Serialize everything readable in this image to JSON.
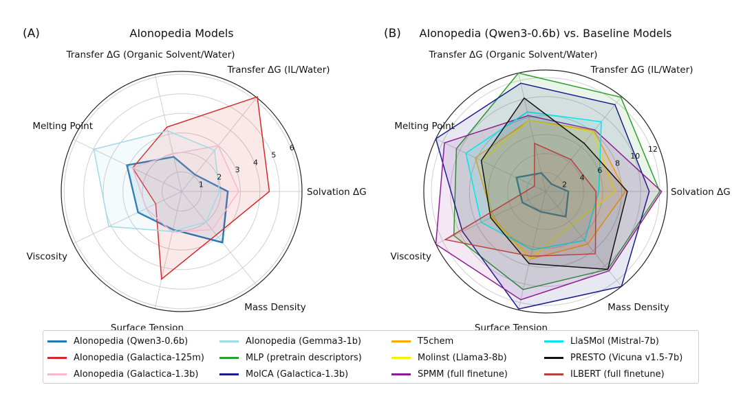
{
  "chart_data": [
    {
      "type": "radar",
      "panel_label": "(A)",
      "title": "AIonopedia Models",
      "axes": [
        "Solvation ΔG",
        "Transfer ΔG (IL/Water)",
        "Transfer ΔG (Organic Solvent/Water)",
        "Melting Point",
        "Viscosity",
        "Surface Tension",
        "Mass Density"
      ],
      "radial_ticks": [
        1,
        2,
        3,
        4,
        5,
        6
      ],
      "rlim": [
        0,
        6.15
      ],
      "grid": true,
      "series": [
        {
          "name": "AIonopedia (Qwen3-0.6b)",
          "color": "#1f77b4",
          "values": [
            2.36,
            1.1,
            1.82,
            3.1,
            2.47,
            2.0,
            3.34
          ]
        },
        {
          "name": "AIonopedia (Galactica-125m)",
          "color": "#d62728",
          "values": [
            4.48,
            6.2,
            3.38,
            2.78,
            1.47,
            4.6,
            2.84
          ]
        },
        {
          "name": "AIonopedia (Galactica-1.3b)",
          "color": "#f7b6d2",
          "values": [
            2.92,
            3.0,
            1.97,
            2.78,
            2.0,
            2.14,
            2.5
          ]
        },
        {
          "name": "AIonopedia (Gemma3-1b)",
          "color": "#9edae5",
          "values": [
            1.93,
            2.7,
            3.19,
            4.98,
            4.13,
            2.1,
            2.0
          ]
        }
      ]
    },
    {
      "type": "radar",
      "panel_label": "(B)",
      "title": "AIonopedia (Qwen3-0.6b) vs. Baseline Models",
      "axes": [
        "Solvation ΔG",
        "Transfer ΔG (IL/Water)",
        "Transfer ΔG (Organic Solvent/Water)",
        "Melting Point",
        "Viscosity",
        "Surface Tension",
        "Mass Density"
      ],
      "radial_ticks": [
        2,
        4,
        6,
        8,
        10,
        12
      ],
      "rlim": [
        0,
        12.8
      ],
      "grid": true,
      "series": [
        {
          "name": "AIonopedia (Qwen3-0.6b)",
          "color": "#1f77b4",
          "values": [
            2.4,
            1.0,
            2.0,
            3.4,
            2.7,
            2.2,
            3.4
          ]
        },
        {
          "name": "MLP (pretrain descriptors)",
          "color": "#2ca02c",
          "values": [
            12.0,
            12.7,
            12.8,
            10.4,
            10.7,
            10.6,
            10.5
          ]
        },
        {
          "name": "MolCA (Galactica-1.3b)",
          "color": "#1a1a8c",
          "values": [
            10.9,
            11.7,
            11.7,
            12.8,
            9.7,
            12.7,
            12.8
          ]
        },
        {
          "name": "T5chem",
          "color": "#ffa500",
          "values": [
            8.4,
            8.2,
            7.7,
            8.2,
            6.2,
            7.3,
            7.1
          ]
        },
        {
          "name": "Molinst (Llama3-8b)",
          "color": "#f5f000",
          "values": [
            7.3,
            8.0,
            7.7,
            7.5,
            6.3,
            7.3,
            4.5
          ]
        },
        {
          "name": "SPMM (full finetune)",
          "color": "#8e1b8e",
          "values": [
            12.2,
            8.3,
            8.2,
            11.8,
            12.8,
            11.7,
            10.7
          ]
        },
        {
          "name": "LlaSMol (Mistral-7b)",
          "color": "#00e5f0",
          "values": [
            5.6,
            9.4,
            8.6,
            9.3,
            7.5,
            6.3,
            6.6
          ]
        },
        {
          "name": "PRESTO (Vicuna v1.5-7b)",
          "color": "#111111",
          "values": [
            8.6,
            6.5,
            10.1,
            7.5,
            6.4,
            7.8,
            10.5
          ]
        },
        {
          "name": "ILBERT (full finetune)",
          "color": "#b5403c",
          "values": [
            5.3,
            4.3,
            5.2,
            1.3,
            11.7,
            7.0,
            8.4
          ]
        }
      ]
    }
  ],
  "legend": [
    {
      "label": "AIonopedia (Qwen3-0.6b)",
      "color": "#1f77b4"
    },
    {
      "label": "AIonopedia (Galactica-125m)",
      "color": "#d62728"
    },
    {
      "label": "AIonopedia (Galactica-1.3b)",
      "color": "#f7b6d2"
    },
    {
      "label": "AIonopedia (Gemma3-1b)",
      "color": "#9edae5"
    },
    {
      "label": "MLP (pretrain descriptors)",
      "color": "#2ca02c"
    },
    {
      "label": "MolCA (Galactica-1.3b)",
      "color": "#1a1a8c"
    },
    {
      "label": "T5chem",
      "color": "#ffa500"
    },
    {
      "label": "Molinst (Llama3-8b)",
      "color": "#f5f000"
    },
    {
      "label": "SPMM (full finetune)",
      "color": "#8e1b8e"
    },
    {
      "label": "LlaSMol (Mistral-7b)",
      "color": "#00e5f0"
    },
    {
      "label": "PRESTO (Vicuna v1.5-7b)",
      "color": "#111111"
    },
    {
      "label": "ILBERT (full finetune)",
      "color": "#b5403c"
    }
  ]
}
